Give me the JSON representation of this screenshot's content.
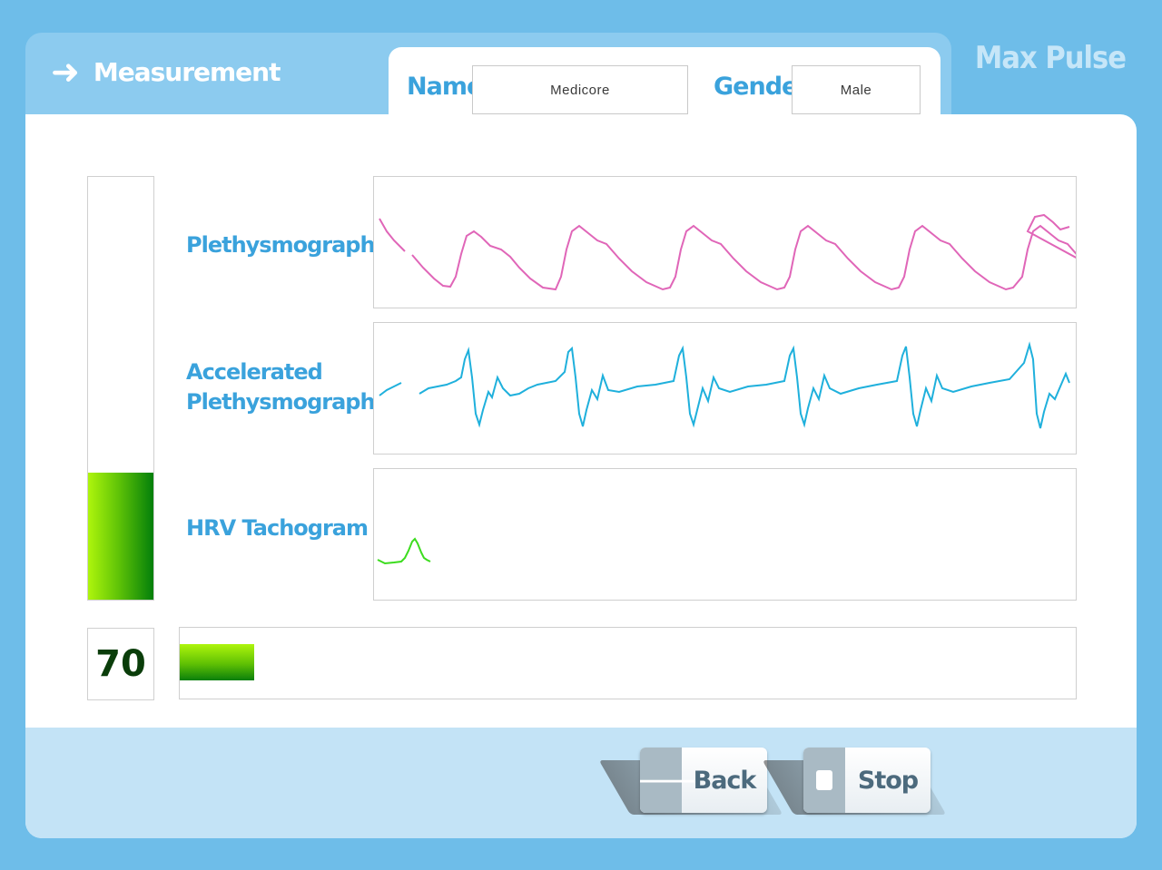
{
  "header": {
    "title": "Measurement",
    "brand": "Max Pulse"
  },
  "patient": {
    "name_label": "Name",
    "name_value": "Medicore",
    "gender_label": "Gender",
    "gender_value": "Male"
  },
  "graphs": {
    "plethysmograph_label": "Plethysmograph",
    "accelerated_label_line1": "Accelerated",
    "accelerated_label_line2": "Plethysmograph",
    "hrv_label": "HRV Tachogram"
  },
  "meters": {
    "vertical_level": 0.3,
    "value": "70",
    "progress": 0.083
  },
  "buttons": {
    "back_label": "Back",
    "stop_label": "Stop"
  },
  "colors": {
    "background": "#6ebde9",
    "accent": "#3aa2dc",
    "pleth_trace": "#e066b8",
    "accel_trace": "#1fb0dc",
    "hrv_trace": "#3cdc1e",
    "meter_green": "#62c507"
  },
  "icons": {
    "header": "arrow-right-icon",
    "back": "arrow-left-icon",
    "stop": "stop-square-icon"
  }
}
